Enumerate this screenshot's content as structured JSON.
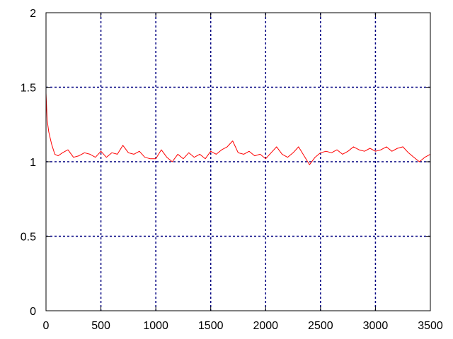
{
  "chart_data": {
    "type": "line",
    "title": "",
    "xlabel": "",
    "ylabel": "",
    "xlim": [
      0,
      3500
    ],
    "ylim": [
      0,
      2
    ],
    "xticks": [
      0,
      500,
      1000,
      1500,
      2000,
      2500,
      3000,
      3500
    ],
    "yticks": [
      0,
      0.5,
      1,
      1.5,
      2
    ],
    "xtick_labels": [
      "0",
      "500",
      "1000",
      "1500",
      "2000",
      "2500",
      "3000",
      "3500"
    ],
    "ytick_labels": [
      "0",
      "0.5",
      "1",
      "1.5",
      "2"
    ],
    "grid": true,
    "grid_color": "#000080",
    "series": [
      {
        "name": "",
        "color": "#ff0000",
        "x": [
          0,
          10,
          25,
          50,
          80,
          110,
          150,
          200,
          250,
          300,
          350,
          400,
          450,
          500,
          550,
          600,
          650,
          700,
          750,
          800,
          850,
          900,
          950,
          1000,
          1050,
          1100,
          1150,
          1200,
          1250,
          1300,
          1350,
          1400,
          1450,
          1500,
          1550,
          1600,
          1650,
          1700,
          1750,
          1800,
          1850,
          1900,
          1950,
          2000,
          2050,
          2100,
          2150,
          2200,
          2250,
          2300,
          2350,
          2400,
          2450,
          2500,
          2550,
          2600,
          2650,
          2700,
          2750,
          2800,
          2850,
          2900,
          2950,
          3000,
          3050,
          3100,
          3150,
          3200,
          3250,
          3300,
          3350,
          3400,
          3450,
          3500
        ],
        "y": [
          1.46,
          1.28,
          1.2,
          1.12,
          1.05,
          1.04,
          1.06,
          1.08,
          1.03,
          1.04,
          1.06,
          1.05,
          1.03,
          1.07,
          1.03,
          1.06,
          1.05,
          1.11,
          1.06,
          1.05,
          1.07,
          1.03,
          1.02,
          1.02,
          1.08,
          1.03,
          1.0,
          1.05,
          1.02,
          1.06,
          1.03,
          1.05,
          1.02,
          1.07,
          1.05,
          1.08,
          1.1,
          1.14,
          1.06,
          1.05,
          1.07,
          1.04,
          1.05,
          1.02,
          1.06,
          1.1,
          1.05,
          1.03,
          1.06,
          1.1,
          1.04,
          0.98,
          1.03,
          1.06,
          1.07,
          1.06,
          1.08,
          1.05,
          1.07,
          1.1,
          1.08,
          1.07,
          1.09,
          1.07,
          1.08,
          1.1,
          1.07,
          1.09,
          1.1,
          1.06,
          1.03,
          1.0,
          1.03,
          1.05
        ]
      }
    ]
  }
}
